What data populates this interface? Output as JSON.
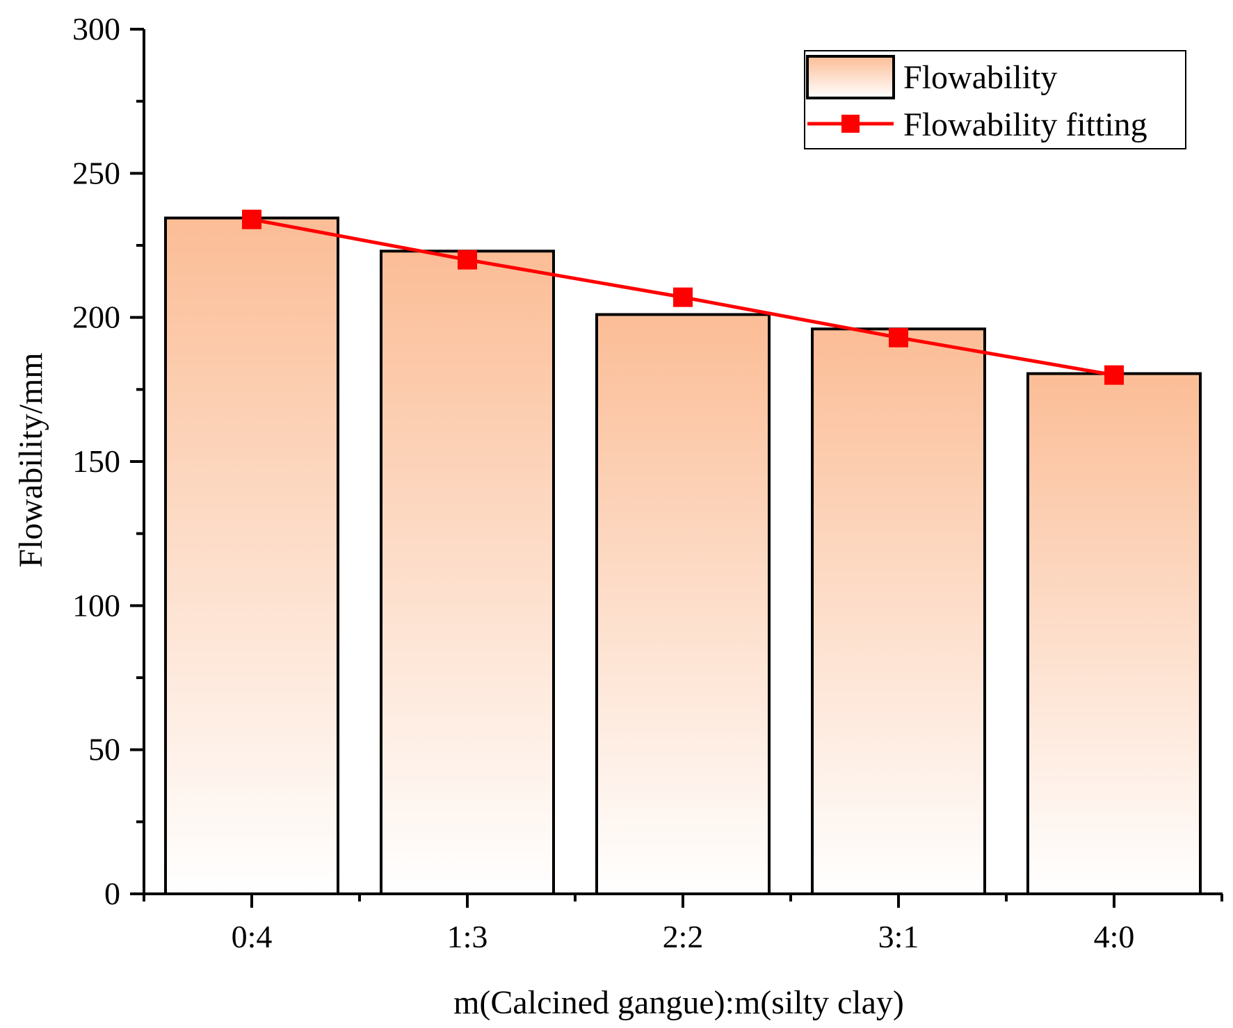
{
  "chart_data": {
    "type": "bar",
    "title": "",
    "xlabel": "m(Calcined gangue):m(silty clay)",
    "ylabel": "Flowability/mm",
    "categories": [
      "0:4",
      "1:3",
      "2:2",
      "3:1",
      "4:0"
    ],
    "ylim": [
      0,
      300
    ],
    "yticks": [
      0,
      50,
      100,
      150,
      200,
      250,
      300
    ],
    "series": [
      {
        "name": "Flowability",
        "kind": "bar",
        "values": [
          234.5,
          223,
          201,
          196,
          180.5
        ]
      },
      {
        "name": "Flowability fitting",
        "kind": "line",
        "marker": "square",
        "values": [
          234,
          220,
          207,
          193,
          180
        ]
      }
    ],
    "legend": {
      "position": "top-right",
      "entries": [
        "Flowability",
        "Flowability fitting"
      ]
    },
    "grid": false
  },
  "colors": {
    "bar_top": "#fbbd96",
    "bar_bottom": "#ffffff",
    "bar_stroke": "#000000",
    "fit_line": "#ff0000",
    "axis": "#000000"
  }
}
